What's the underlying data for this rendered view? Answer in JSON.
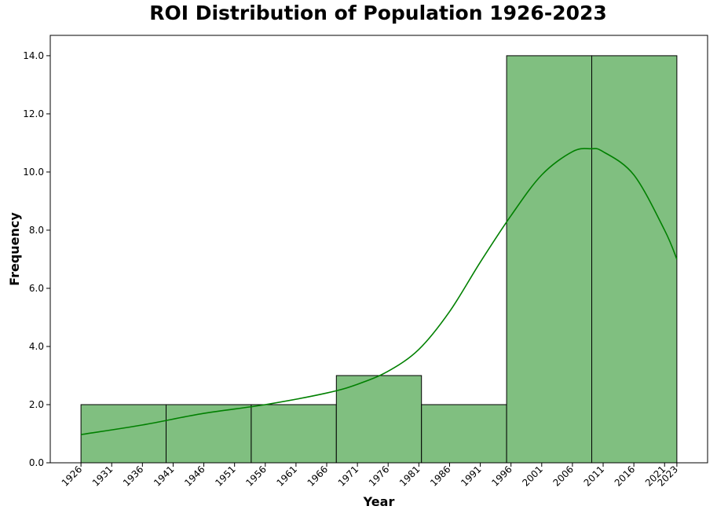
{
  "chart_data": {
    "type": "histogram",
    "title": "ROI Distribution of Population 1926-2023",
    "xlabel": "Year",
    "ylabel": "Frequency",
    "xlim": [
      1921,
      2028
    ],
    "ylim": [
      0,
      14.7
    ],
    "xticks": [
      1926,
      1931,
      1936,
      1941,
      1946,
      1951,
      1956,
      1961,
      1966,
      1971,
      1976,
      1981,
      1986,
      1991,
      1996,
      2001,
      2006,
      2011,
      2016,
      2021,
      2023
    ],
    "yticks": [
      0.0,
      2.0,
      4.0,
      6.0,
      8.0,
      10.0,
      12.0,
      14.0
    ],
    "bins": [
      {
        "start": 1926.0,
        "end": 1939.857,
        "count": 2
      },
      {
        "start": 1939.857,
        "end": 1953.714,
        "count": 2
      },
      {
        "start": 1953.714,
        "end": 1967.571,
        "count": 2
      },
      {
        "start": 1967.571,
        "end": 1981.429,
        "count": 3
      },
      {
        "start": 1981.429,
        "end": 1995.286,
        "count": 2
      },
      {
        "start": 1995.286,
        "end": 2009.143,
        "count": 14
      },
      {
        "start": 2009.143,
        "end": 2023.0,
        "count": 14
      }
    ],
    "kde": {
      "x": [
        1926,
        1936,
        1946,
        1956,
        1966,
        1971,
        1976,
        1981,
        1986,
        1991,
        1996,
        2001,
        2006,
        2009,
        2011,
        2016,
        2021,
        2023
      ],
      "y": [
        0.97,
        1.3,
        1.7,
        2.0,
        2.4,
        2.7,
        3.15,
        3.9,
        5.2,
        6.9,
        8.5,
        9.9,
        10.7,
        10.8,
        10.7,
        9.9,
        8.0,
        7.0
      ]
    },
    "colors": {
      "bar_fill": "#80bf80",
      "bar_edge": "#000000",
      "kde_line": "#008000"
    },
    "grid": false
  }
}
